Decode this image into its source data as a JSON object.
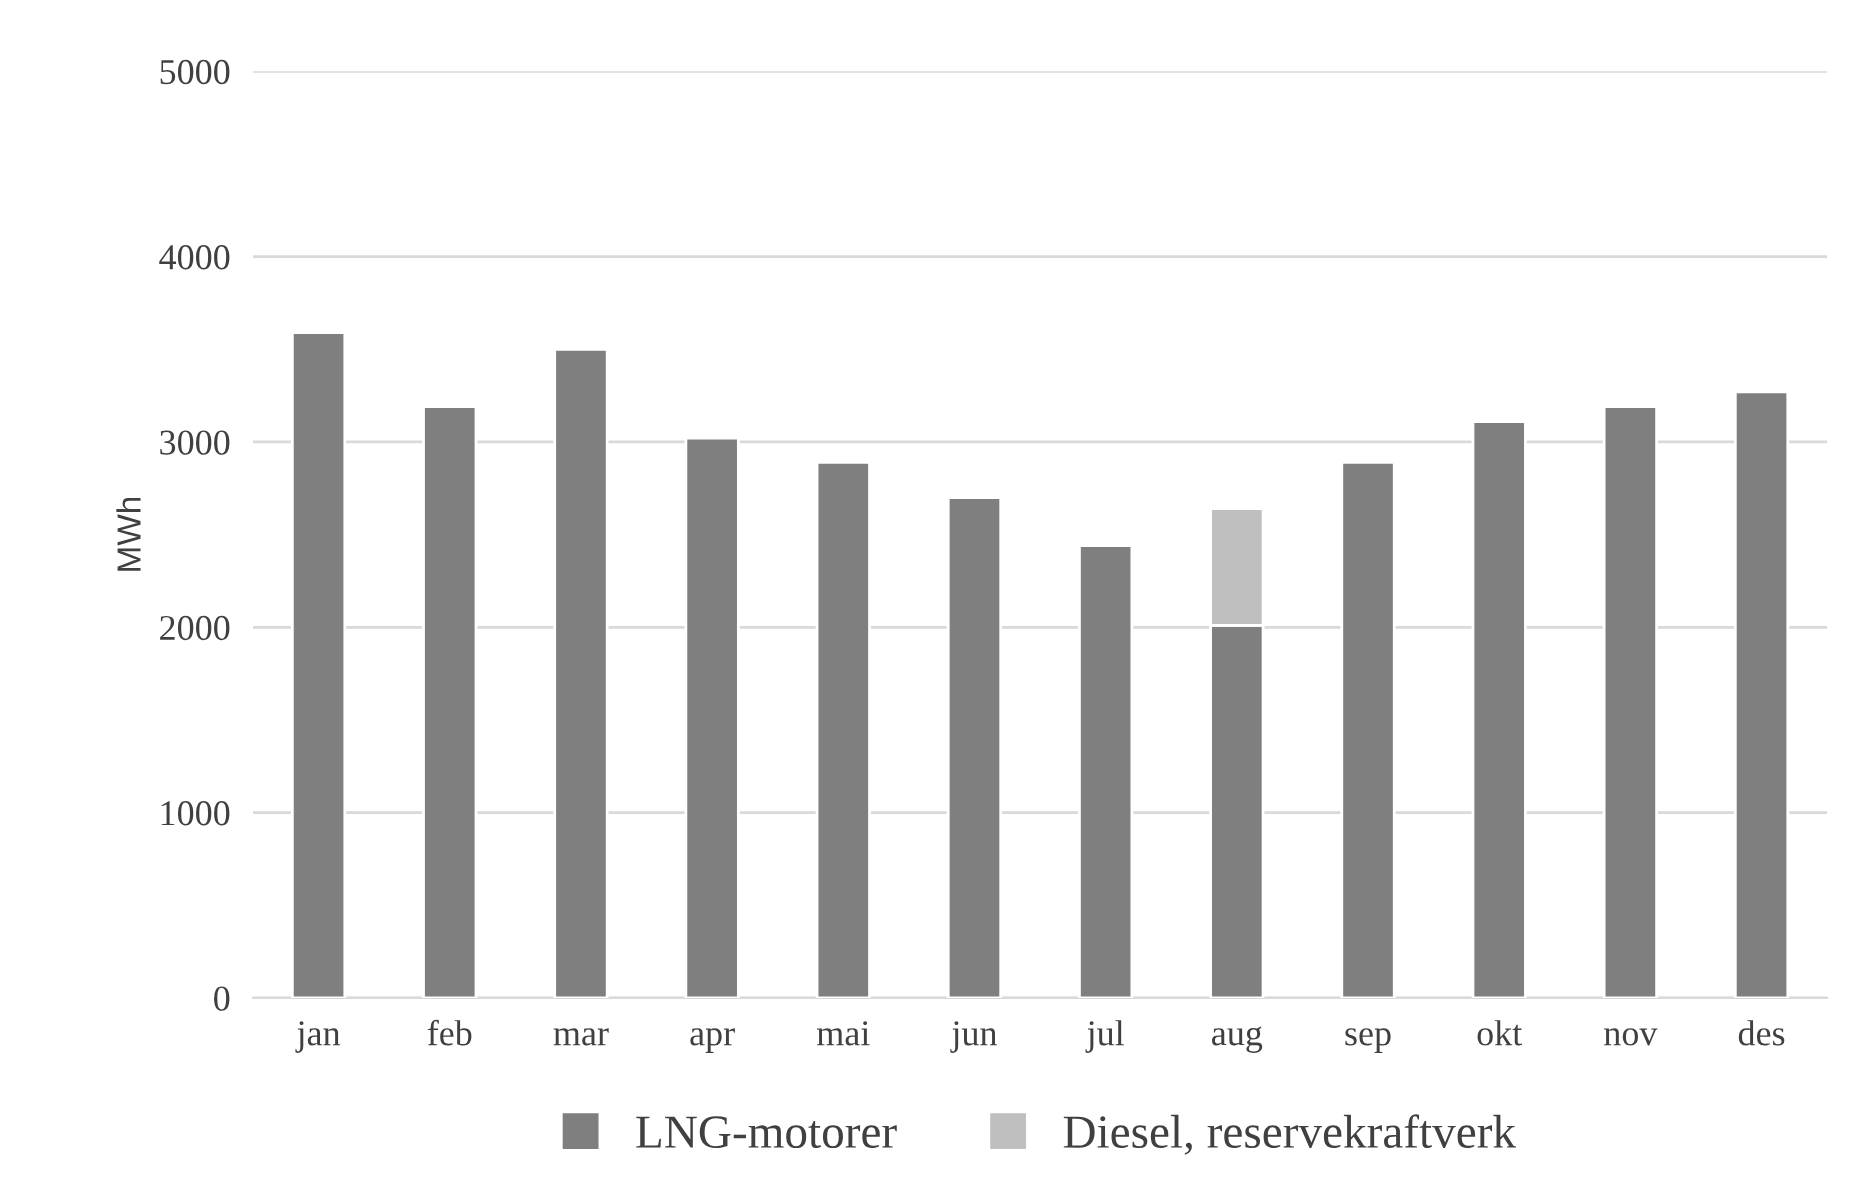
{
  "chart_data": {
    "type": "bar",
    "stacked": true,
    "ylabel": "MWh",
    "categories": [
      "jan",
      "feb",
      "mar",
      "apr",
      "mai",
      "jun",
      "jul",
      "aug",
      "sep",
      "okt",
      "nov",
      "des"
    ],
    "series": [
      {
        "name": "LNG-motorer",
        "color": "#7f7f7f",
        "values": [
          3590,
          3190,
          3500,
          3020,
          2890,
          2700,
          2440,
          2010,
          2890,
          3110,
          3190,
          3270
        ]
      },
      {
        "name": "Diesel, reservekraftverk",
        "color": "#bfbfbf",
        "values": [
          null,
          null,
          null,
          null,
          null,
          null,
          null,
          630,
          null,
          null,
          null,
          null
        ]
      }
    ],
    "ylim": [
      0,
      5000
    ],
    "yticks": [
      0,
      1000,
      2000,
      3000,
      4000,
      5000
    ],
    "grid": "y",
    "legend": "bottom"
  }
}
